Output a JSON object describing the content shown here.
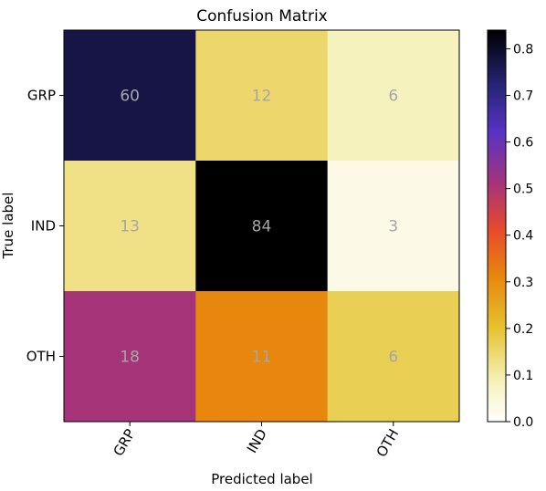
{
  "chart_data": {
    "type": "heatmap",
    "title": "Confusion Matrix",
    "xlabel": "Predicted label",
    "ylabel": "True label",
    "x_categories": [
      "GRP",
      "IND",
      "OTH"
    ],
    "y_categories": [
      "GRP",
      "IND",
      "OTH"
    ],
    "cell_labels": [
      [
        "60",
        "12",
        "6"
      ],
      [
        "13",
        "84",
        "3"
      ],
      [
        "18",
        "11",
        "6"
      ]
    ],
    "values": [
      [
        0.77,
        0.15,
        0.08
      ],
      [
        0.13,
        0.84,
        0.03
      ],
      [
        0.51,
        0.31,
        0.17
      ]
    ],
    "colormap": "CMRmap_r",
    "colorbar": {
      "range": [
        0.0,
        0.84
      ],
      "ticks": [
        "0.0",
        "0.1",
        "0.2",
        "0.3",
        "0.4",
        "0.5",
        "0.6",
        "0.7",
        "0.8"
      ],
      "tick_values": [
        0.0,
        0.1,
        0.2,
        0.3,
        0.4,
        0.5,
        0.6,
        0.7,
        0.8
      ]
    },
    "x_tick_rotation": "45deg",
    "grid": false
  }
}
